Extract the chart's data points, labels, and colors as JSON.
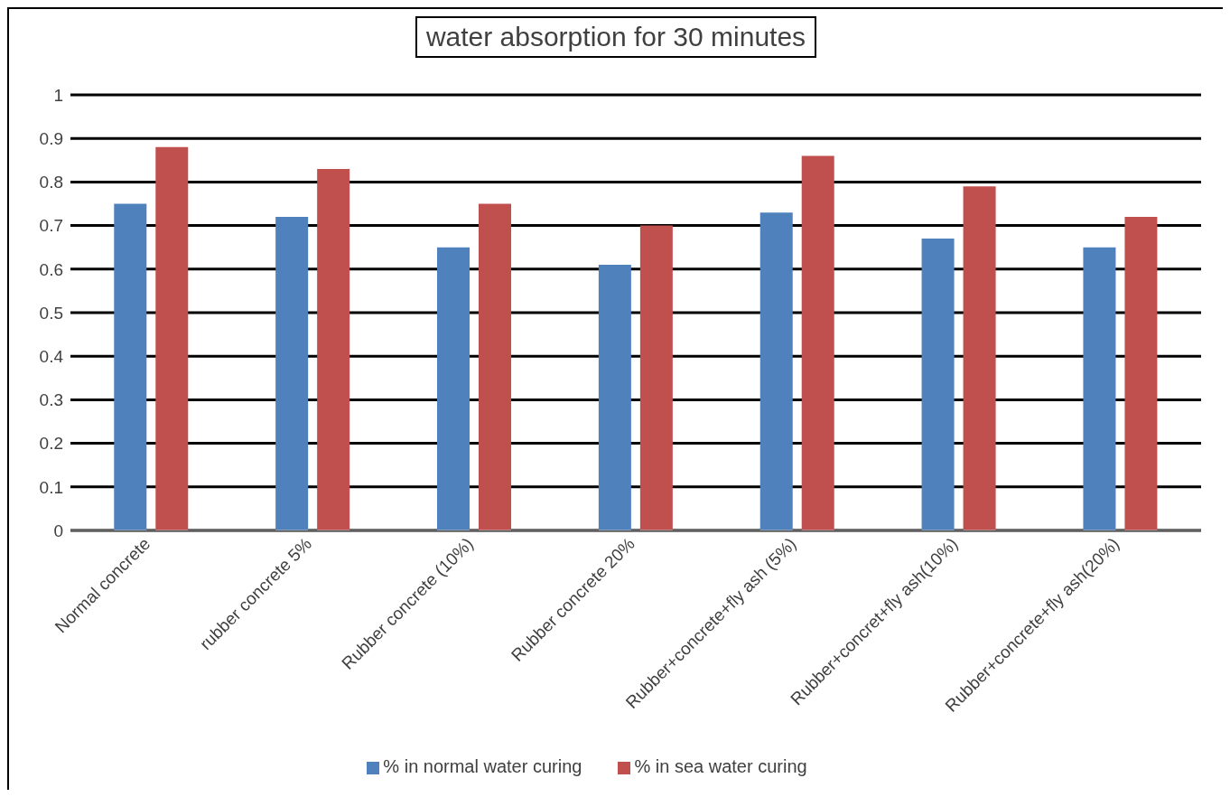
{
  "chart_data": {
    "type": "bar",
    "title": "water absorption for 30 minutes",
    "categories": [
      "Normal concrete",
      "rubber concrete 5%",
      "Rubber concrete (10%)",
      "Rubber concrete 20%",
      "Rubber+concrete+fly ash (5%)",
      "Rubber+concret+fly ash(10%)",
      "Rubber+concrete+fly ash(20%)"
    ],
    "series": [
      {
        "name": "% in normal water curing",
        "color": "#4f81bd",
        "values": [
          0.75,
          0.72,
          0.65,
          0.61,
          0.73,
          0.67,
          0.65
        ]
      },
      {
        "name": "% in sea water curing",
        "color": "#c0504d",
        "values": [
          0.88,
          0.83,
          0.75,
          0.7,
          0.86,
          0.79,
          0.72
        ]
      }
    ],
    "ylim": [
      0,
      1
    ],
    "yticks": [
      0,
      0.1,
      0.2,
      0.3,
      0.4,
      0.5,
      0.6,
      0.7,
      0.8,
      0.9,
      1
    ],
    "grid": "y",
    "legend": "bottom"
  }
}
